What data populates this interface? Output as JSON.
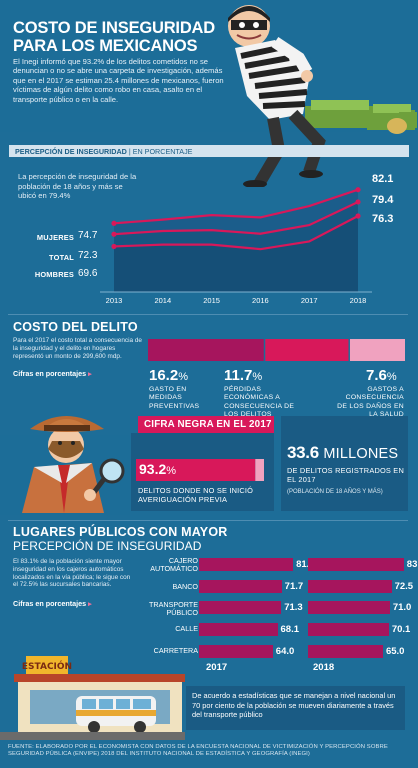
{
  "header": {
    "title": "COSTO DE INSEGURIDAD PARA LOS MEXICANOS",
    "body": "El Inegi informó que 93.2% de los delitos cometidos no se denuncian o no se abre una carpeta de investigación, además que en el 2017 se estiman 25.4 millones de mexicanos, fueron víctimas de algún delito como robo en casa, asalto en el transporte público o en la calle."
  },
  "perception": {
    "title": "PERCEPCIÓN DE INSEGURIDAD",
    "title_unit": "| EN PORCENTAJE",
    "note": "La percepción de inseguridad de la población de 18 años y más se ubicó en 79.4%",
    "labels": {
      "mujeres": "MUJERES",
      "total": "TOTAL",
      "hombres": "HOMBRES"
    },
    "start_values": {
      "mujeres": "74.7",
      "total": "72.3",
      "hombres": "69.6"
    },
    "end_values": {
      "mujeres": "82.1",
      "total": "79.4",
      "hombres": "76.3"
    }
  },
  "costo": {
    "title": "COSTO DEL DELITO",
    "note": "Para el 2017 el costo total a consecuencia de la inseguridad y el delito en hogares representó un monto de 299,600 mdp.",
    "cifras_label": "Cifras en porcentajes",
    "items": [
      {
        "pct": "16.2",
        "sign": "%",
        "caption": "GASTO EN MEDIDAS PREVENTIVAS"
      },
      {
        "pct": "11.7",
        "sign": "%",
        "caption": "PÉRDIDAS ECONÓMICAS A CONSECUENCIA DE LOS DELITOS"
      },
      {
        "pct": "7.6",
        "sign": "%",
        "caption": "GASTOS A CONSECUENCIA DE LOS DAÑOS EN LA SALUD"
      }
    ]
  },
  "cifra_negra": {
    "title": "CIFRA NEGRA EN EL 2017",
    "pct": "93.2",
    "sign": "%",
    "caption": "DELITOS DONDE NO SE INICIÓ AVERIGUACIÓN PREVIA"
  },
  "millones": {
    "number": "33.6",
    "unit": "MILLONES",
    "caption": "DE DELITOS REGISTRADOS EN EL 2017",
    "sub": "(POBLACIÓN DE 18 AÑOS Y MÁS)"
  },
  "lugares": {
    "title": "LUGARES PÚBLICOS CON MAYOR",
    "subtitle": "PERCEPCIÓN DE INSEGURIDAD",
    "note": "El 83.1% de la población siente mayor inseguridad en los cajeros automáticos localizados en la vía pública; le sigue con el 72.5% las sucursales bancarias.",
    "cifras_label": "Cifras en porcentajes",
    "labels": [
      "CAJERO AUTOMÁTICO",
      "BANCO",
      "TRANSPORTE PÚBLICO",
      "CALLE",
      "CARRETERA"
    ],
    "v2017": [
      "81.6",
      "71.7",
      "71.3",
      "68.1",
      "64.0"
    ],
    "v2018": [
      "83.1",
      "72.5",
      "71.0",
      "70.1",
      "65.0"
    ],
    "year_a": "2017",
    "year_b": "2018"
  },
  "station_sign": "ESTACIÓN",
  "info": "De acuerdo a estadísticas que se manejan a nivel nacional un 70 por ciento de la población se mueven diariamente a través del transporte público",
  "source": "FUENTE: ELABORADO POR EL ECONOMISTA CON DATOS DE LA ENCUESTA NACIONAL DE VICTIMIZACIÓN Y PERCEPCIÓN SOBRE SEGURIDAD PÚBLICA (ENVIPE) 2018 DEL INSTITUTO NACIONAL DE ESTADÍSTICA Y GEOGRAFÍA (INEGI)",
  "colors": {
    "background": "#1d6d98",
    "accent": "#d8185a",
    "dark": "#a6155d",
    "panel": "#1a5b84",
    "pink": "#f0a2bf"
  },
  "chart_data": [
    {
      "type": "line",
      "title": "PERCEPCIÓN DE INSEGURIDAD | EN PORCENTAJE",
      "x": [
        2013,
        2014,
        2015,
        2016,
        2017,
        2018
      ],
      "series": [
        {
          "name": "MUJERES",
          "values": [
            74.7,
            75.5,
            76.5,
            76.0,
            78.5,
            82.1
          ]
        },
        {
          "name": "TOTAL",
          "values": [
            72.3,
            73.0,
            73.2,
            72.4,
            74.3,
            79.4
          ]
        },
        {
          "name": "HOMBRES",
          "values": [
            69.6,
            70.0,
            70.0,
            69.0,
            70.7,
            76.3
          ]
        }
      ],
      "ylim": [
        60,
        86
      ],
      "grid": false
    },
    {
      "type": "bar",
      "title": "COSTO DEL DELITO",
      "categories": [
        "GASTO EN MEDIDAS PREVENTIVAS",
        "PÉRDIDAS ECONÓMICAS A CONSECUENCIA DE LOS DELITOS",
        "GASTOS A CONSECUENCIA DE LOS DAÑOS EN LA SALUD"
      ],
      "values": [
        16.2,
        11.7,
        7.6
      ]
    },
    {
      "type": "bar",
      "title": "LUGARES PÚBLICOS CON MAYOR PERCEPCIÓN DE INSEGURIDAD",
      "categories": [
        "CAJERO AUTOMÁTICO",
        "BANCO",
        "TRANSPORTE PÚBLICO",
        "CALLE",
        "CARRETERA"
      ],
      "series": [
        {
          "name": "2017",
          "values": [
            81.6,
            71.7,
            71.3,
            68.1,
            64.0
          ]
        },
        {
          "name": "2018",
          "values": [
            83.1,
            72.5,
            71.0,
            70.1,
            65.0
          ]
        }
      ],
      "xlim": [
        0,
        85
      ]
    }
  ]
}
